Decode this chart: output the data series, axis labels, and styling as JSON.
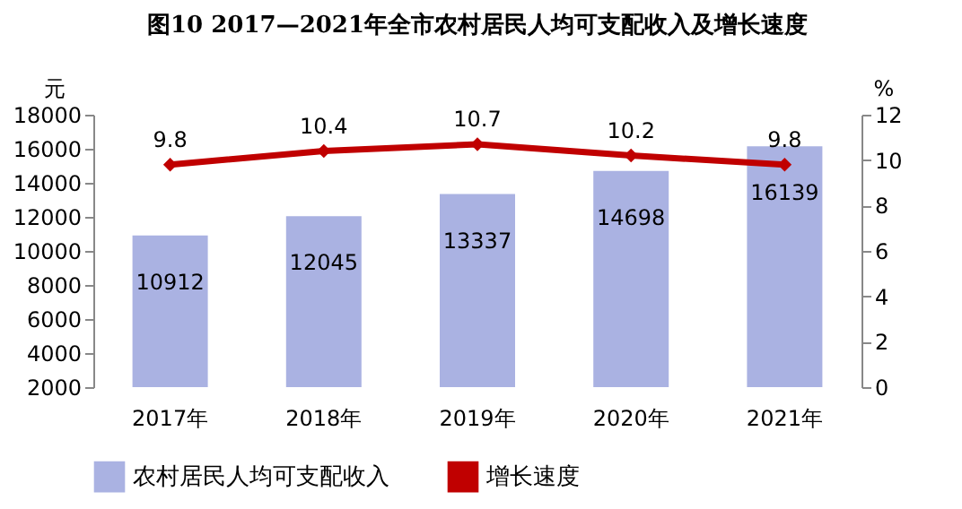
{
  "chart_data": {
    "type": "bar",
    "title": "图10  2017—2021年全市农村居民人均可支配收入及增长速度",
    "ylabel": "元",
    "y2label": "%",
    "categories": [
      "2017年",
      "2018年",
      "2019年",
      "2020年",
      "2021年"
    ],
    "series": [
      {
        "name": "农村居民人均可支配收入",
        "color": "#aab2e2",
        "values": [
          10912,
          12045,
          13337,
          14698,
          16139
        ]
      },
      {
        "name": "增长速度",
        "type": "line",
        "axis": "y2",
        "color": "#c00000",
        "values": [
          9.8,
          10.4,
          10.7,
          10.2,
          9.8
        ]
      }
    ],
    "ylim": [
      2000,
      18000
    ],
    "yticks": [
      2000,
      4000,
      6000,
      8000,
      10000,
      12000,
      14000,
      16000,
      18000
    ],
    "y2lim": [
      0,
      12
    ],
    "y2ticks": [
      0,
      2,
      4,
      6,
      8,
      10,
      12
    ],
    "data_labels": true,
    "legend": "bottom",
    "grid": false,
    "marker": "diamond",
    "line_style": "solid"
  }
}
